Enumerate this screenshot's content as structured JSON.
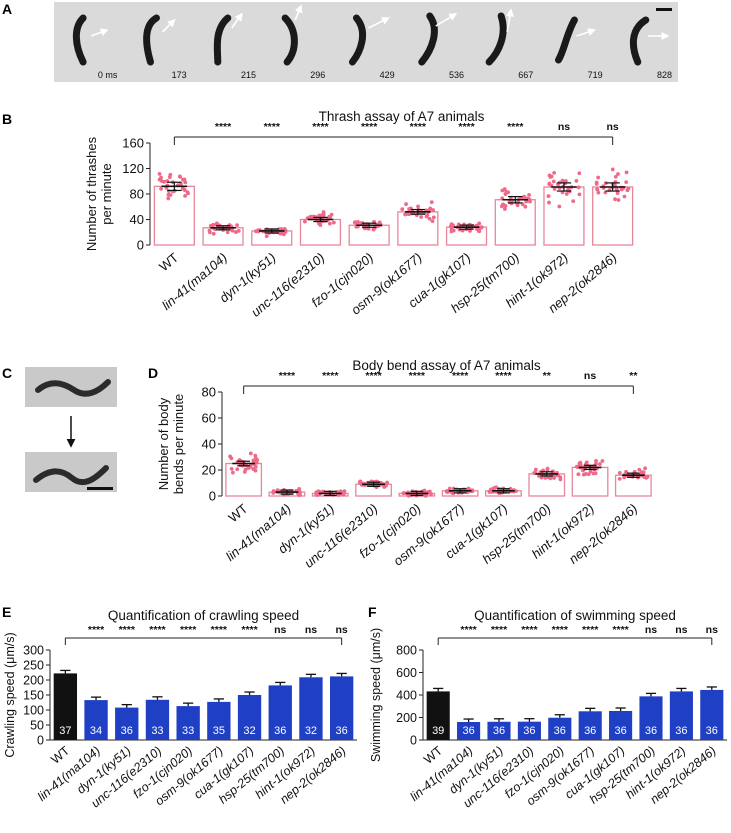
{
  "panel_letters": {
    "A": "A",
    "B": "B",
    "C": "C",
    "D": "D",
    "E": "E",
    "F": "F"
  },
  "filmstrip": {
    "times": [
      "0 ms",
      "173",
      "215",
      "296",
      "429",
      "536",
      "667",
      "719",
      "828"
    ]
  },
  "strains": [
    "WT",
    "lin-41(ma104)",
    "dyn-1(ky51)",
    "unc-116(e2310)",
    "fzo-1(cjn020)",
    "osm-9(ok1677)",
    "cua-1(gk107)",
    "hsp-25(tm700)",
    "hint-1(ok972)",
    "nep-2(ok2846)"
  ],
  "strain_parts": [
    {
      "gene": "WT",
      "allele": ""
    },
    {
      "gene": "lin-41",
      "allele": "ma104"
    },
    {
      "gene": "dyn-1",
      "allele": "ky51"
    },
    {
      "gene": "unc-116",
      "allele": "e2310"
    },
    {
      "gene": "fzo-1",
      "allele": "cjn020"
    },
    {
      "gene": "osm-9",
      "allele": "ok1677"
    },
    {
      "gene": "cua-1",
      "allele": "gk107"
    },
    {
      "gene": "hsp-25",
      "allele": "tm700"
    },
    {
      "gene": "hint-1",
      "allele": "ok972"
    },
    {
      "gene": "nep-2",
      "allele": "ok2846"
    }
  ],
  "chart_data": [
    {
      "id": "B",
      "type": "bar",
      "title": "Thrash assay of A7 animals",
      "ylabel_lines": [
        "Number of thrashes",
        "per minute"
      ],
      "ylim": [
        0,
        160
      ],
      "yticks": [
        0,
        40,
        80,
        120,
        160
      ],
      "values": [
        92,
        27,
        22,
        40,
        31,
        52,
        28,
        71,
        91,
        91
      ],
      "significance": [
        "",
        "****",
        "****",
        "****",
        "****",
        "****",
        "****",
        "****",
        "ns",
        "ns"
      ],
      "colors": {
        "bar": "#e8869a",
        "points": "#ee6a88"
      }
    },
    {
      "id": "D",
      "type": "bar",
      "title": "Body bend assay of A7 animals",
      "ylabel_lines": [
        "Number of body",
        "bends per minute"
      ],
      "ylim": [
        0,
        80
      ],
      "yticks": [
        0,
        20,
        40,
        60,
        80
      ],
      "values": [
        25,
        3,
        2,
        9,
        2,
        4,
        4,
        17,
        22,
        16
      ],
      "significance": [
        "",
        "****",
        "****",
        "****",
        "****",
        "****",
        "****",
        "**",
        "ns",
        "**"
      ],
      "colors": {
        "bar": "#e8869a",
        "points": "#ee6a88"
      }
    },
    {
      "id": "E",
      "type": "bar",
      "title": "Quantification of crawling speed",
      "ylabel": "Crawling speed (μm/s)",
      "ylim": [
        0,
        300
      ],
      "yticks": [
        0,
        50,
        100,
        150,
        200,
        250,
        300
      ],
      "values": [
        222,
        133,
        108,
        134,
        113,
        127,
        150,
        182,
        209,
        212
      ],
      "n": [
        "37",
        "34",
        "36",
        "33",
        "33",
        "35",
        "32",
        "36",
        "32",
        "36"
      ],
      "significance": [
        "",
        "****",
        "****",
        "****",
        "****",
        "****",
        "****",
        "ns",
        "ns",
        "ns"
      ],
      "colors": {
        "wt": "#111111",
        "mutant": "#1f3fc4"
      }
    },
    {
      "id": "F",
      "type": "bar",
      "title": "Quantification of swimming speed",
      "ylabel": "Swimming speed (μm/s)",
      "ylim": [
        0,
        800
      ],
      "yticks": [
        0,
        200,
        400,
        600,
        800
      ],
      "values": [
        432,
        160,
        162,
        163,
        198,
        255,
        258,
        388,
        432,
        445
      ],
      "n": [
        "39",
        "36",
        "36",
        "36",
        "36",
        "36",
        "36",
        "36",
        "36",
        "36"
      ],
      "significance": [
        "",
        "****",
        "****",
        "****",
        "****",
        "****",
        "****",
        "ns",
        "ns",
        "ns"
      ],
      "colors": {
        "wt": "#111111",
        "mutant": "#1f3fc4"
      }
    }
  ]
}
